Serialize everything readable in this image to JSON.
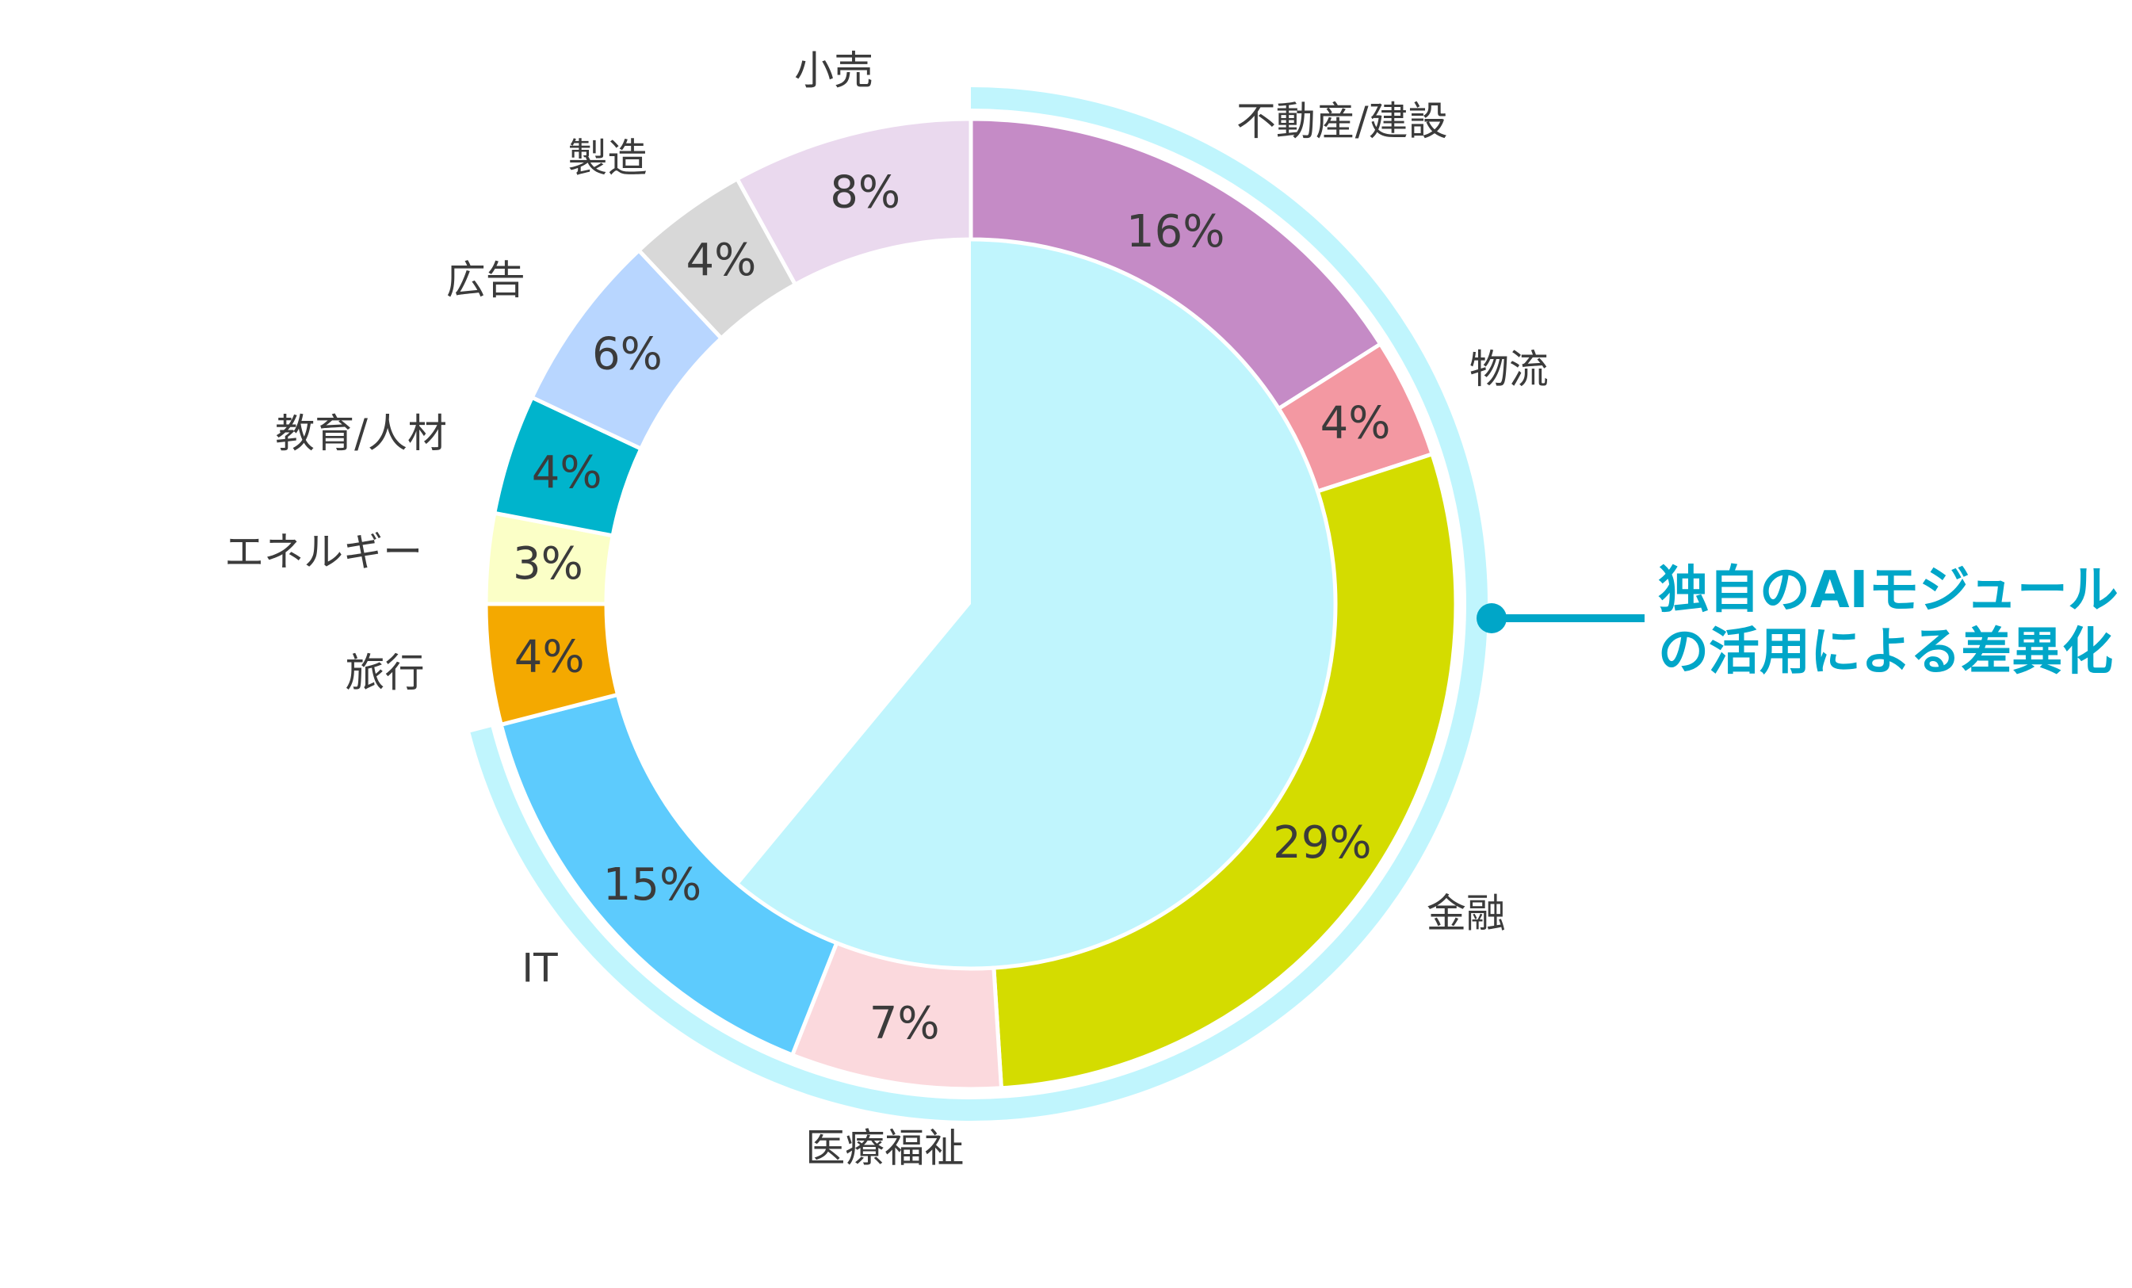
{
  "chart_data": {
    "type": "pie",
    "subtype": "donut",
    "unit": "%",
    "slices": [
      {
        "label": "不動産/建設",
        "value": 16,
        "value_label": "16%",
        "color": "#c58bc6",
        "highlighted": true
      },
      {
        "label": "物流",
        "value": 4,
        "value_label": "4%",
        "color": "#f398a2",
        "highlighted": true
      },
      {
        "label": "金融",
        "value": 29,
        "value_label": "29%",
        "color": "#d4dc00",
        "highlighted": true
      },
      {
        "label": "医療福祉",
        "value": 7,
        "value_label": "7%",
        "color": "#fbd9dd",
        "highlighted": true
      },
      {
        "label": "IT",
        "value": 15,
        "value_label": "15%",
        "color": "#5dcbfd",
        "highlighted": true
      },
      {
        "label": "旅行",
        "value": 4,
        "value_label": "4%",
        "color": "#f4a900",
        "highlighted": false
      },
      {
        "label": "エネルギー",
        "value": 3,
        "value_label": "3%",
        "color": "#fbffc7",
        "highlighted": false
      },
      {
        "label": "教育/人材",
        "value": 4,
        "value_label": "4%",
        "color": "#00b4cc",
        "highlighted": false
      },
      {
        "label": "広告",
        "value": 6,
        "value_label": "6%",
        "color": "#b8d6ff",
        "highlighted": false
      },
      {
        "label": "製造",
        "value": 4,
        "value_label": "4%",
        "color": "#d8d8d8",
        "highlighted": false
      },
      {
        "label": "小売",
        "value": 8,
        "value_label": "8%",
        "color": "#ead9ee",
        "highlighted": false
      }
    ],
    "inner_pie": {
      "share_percent": 61,
      "color": "#c0f5fd",
      "description_visible": false
    },
    "highlight_arc_color": "#c0f5fd",
    "callout": {
      "lines": [
        "独自のAIモジュール",
        "の活用による差異化"
      ],
      "color": "#00a6c8"
    }
  }
}
